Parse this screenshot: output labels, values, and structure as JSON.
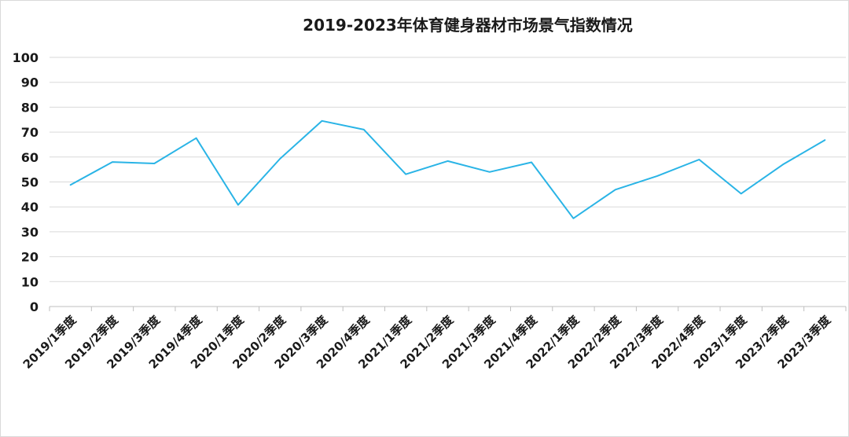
{
  "chart_data": {
    "type": "line",
    "title": "2019-2023年体育健身器材市场景气指数情况",
    "xlabel": "",
    "ylabel": "",
    "ylim": [
      0,
      100
    ],
    "yticks": [
      0,
      10,
      20,
      30,
      40,
      50,
      60,
      70,
      80,
      90,
      100
    ],
    "grid": true,
    "legend": "none",
    "categories": [
      "2019/1季度",
      "2019/2季度",
      "2019/3季度",
      "2019/4季度",
      "2020/1季度",
      "2020/2季度",
      "2020/3季度",
      "2020/4季度",
      "2021/1季度",
      "2021/2季度",
      "2021/3季度",
      "2021/4季度",
      "2022/1季度",
      "2022/2季度",
      "2022/3季度",
      "2022/4季度",
      "2023/1季度",
      "2023/2季度",
      "2023/3季度"
    ],
    "series": [
      {
        "values": [
          48.8,
          58.0,
          57.4,
          67.6,
          40.8,
          59.3,
          74.5,
          71.0,
          53.1,
          58.4,
          54.0,
          57.9,
          35.4,
          46.9,
          52.4,
          59.0,
          45.3,
          57.0,
          66.8
        ],
        "color": "#2ab4e6"
      }
    ]
  }
}
